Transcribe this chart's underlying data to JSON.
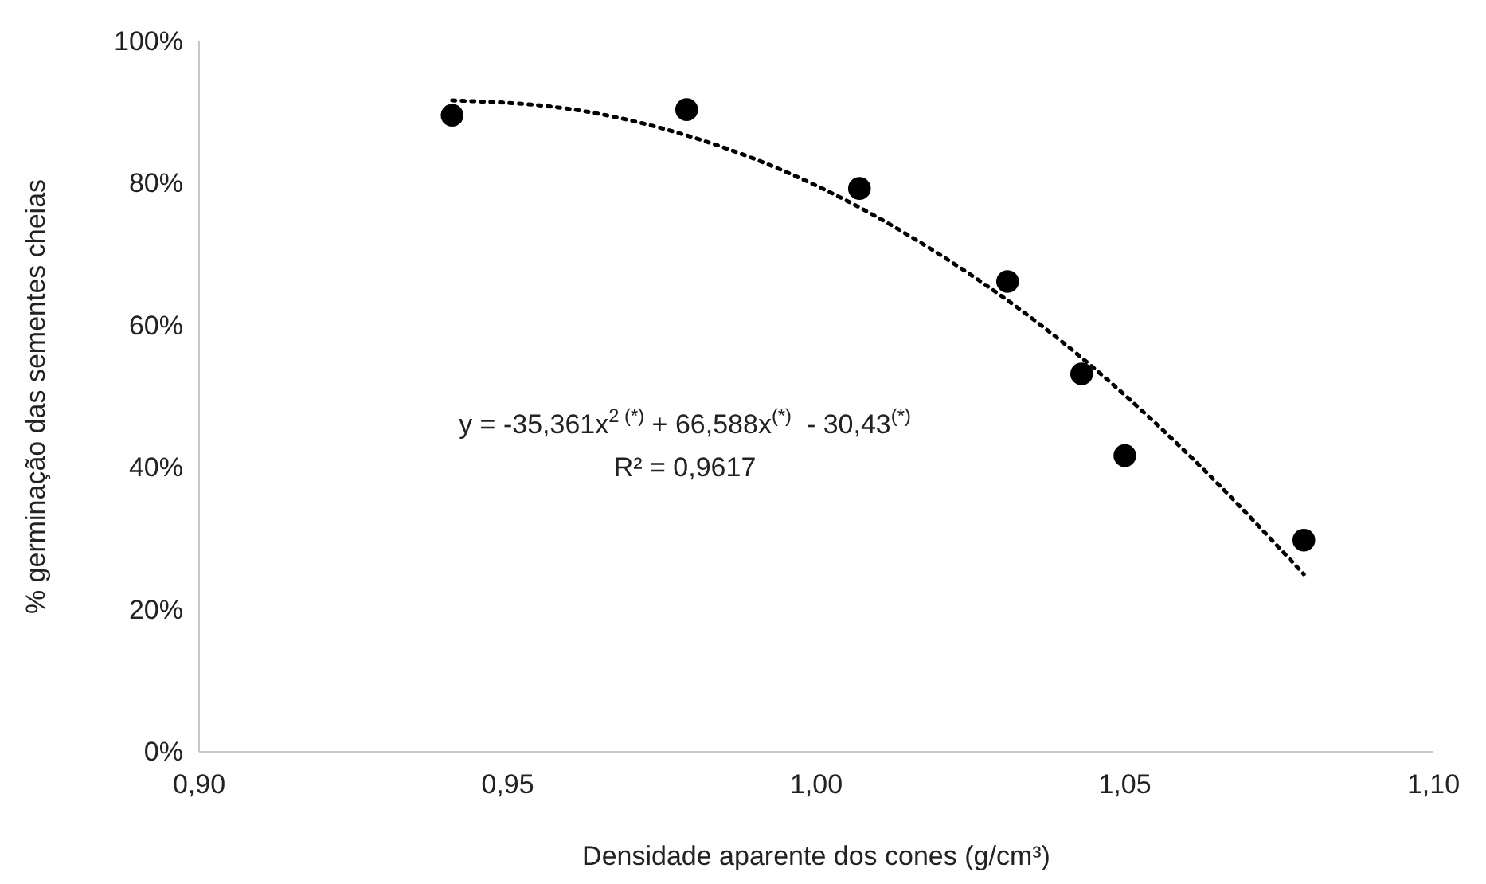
{
  "chart_data": {
    "type": "scatter",
    "xlabel": "Densidade aparente dos cones (g/cm³)",
    "ylabel": "% germinação das sementes cheias",
    "xlim": [
      0.9,
      1.1
    ],
    "xticks": [
      {
        "value": 0.9,
        "label": "0,90"
      },
      {
        "value": 0.95,
        "label": "0,95"
      },
      {
        "value": 1.0,
        "label": "1,00"
      },
      {
        "value": 1.05,
        "label": "1,05"
      },
      {
        "value": 1.1,
        "label": "1,10"
      }
    ],
    "ylim": [
      0,
      100
    ],
    "yticks": [
      {
        "value": 0,
        "label": "0%"
      },
      {
        "value": 20,
        "label": "20%"
      },
      {
        "value": 40,
        "label": "40%"
      },
      {
        "value": 60,
        "label": "60%"
      },
      {
        "value": 80,
        "label": "80%"
      },
      {
        "value": 100,
        "label": "100%"
      }
    ],
    "grid": false,
    "series": [
      {
        "color": "#000000",
        "marker": "circle",
        "x": [
          0.941,
          0.979,
          1.007,
          1.031,
          1.043,
          1.05,
          1.079
        ],
        "values": [
          89.6,
          90.4,
          79.3,
          66.2,
          53.2,
          41.7,
          29.8
        ]
      },
      {
        "type": "line",
        "color": "#000000",
        "marker": "none",
        "line_style": "dotted",
        "x": [
          0.941,
          0.96,
          0.98,
          1.0,
          1.02,
          1.04,
          1.06,
          1.079
        ],
        "values": [
          91.7,
          90.5,
          86.5,
          79.7,
          70.0,
          57.6,
          42.1,
          25.0
        ]
      }
    ],
    "annotations": [
      "y = -35,361x$^{2 (*)}$ + 66,588x$^{(*)}$  - 30,43$^{(*)}$",
      "R² = 0,9617"
    ]
  }
}
